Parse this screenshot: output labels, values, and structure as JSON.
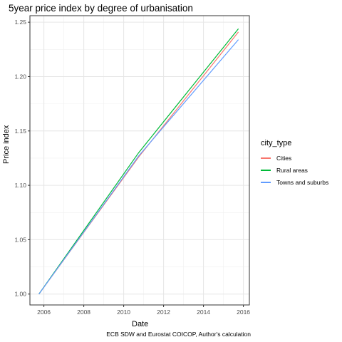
{
  "chart_data": {
    "type": "line",
    "title": "5year price index by degree of urbanisation",
    "xlabel": "Date",
    "ylabel": "Price index",
    "caption": "ECB SDW and Eurostat COICOP, Author's calculation",
    "xlim": [
      2005.3,
      2016.3
    ],
    "ylim": [
      0.99,
      1.256
    ],
    "x_ticks": [
      2006,
      2008,
      2010,
      2012,
      2014,
      2016
    ],
    "y_ticks": [
      1.0,
      1.05,
      1.1,
      1.15,
      1.2,
      1.25
    ],
    "x_tick_labels": [
      "2006",
      "2008",
      "2010",
      "2012",
      "2014",
      "2016"
    ],
    "y_tick_labels": [
      "1.00",
      "1.05",
      "1.10",
      "1.15",
      "1.20",
      "1.25"
    ],
    "grid": true,
    "legend": {
      "title": "city_type",
      "position": "right"
    },
    "series": [
      {
        "name": "Cities",
        "color": "#F8766D",
        "x": [
          2005.75,
          2010.75,
          2015.75
        ],
        "y": [
          1.0,
          1.126,
          1.241
        ]
      },
      {
        "name": "Rural areas",
        "color": "#00BA38",
        "x": [
          2005.75,
          2010.75,
          2015.75
        ],
        "y": [
          1.0,
          1.13,
          1.244
        ]
      },
      {
        "name": "Towns and suburbs",
        "color": "#619CFF",
        "x": [
          2005.75,
          2010.75,
          2015.75
        ],
        "y": [
          1.0,
          1.127,
          1.234
        ]
      }
    ]
  }
}
